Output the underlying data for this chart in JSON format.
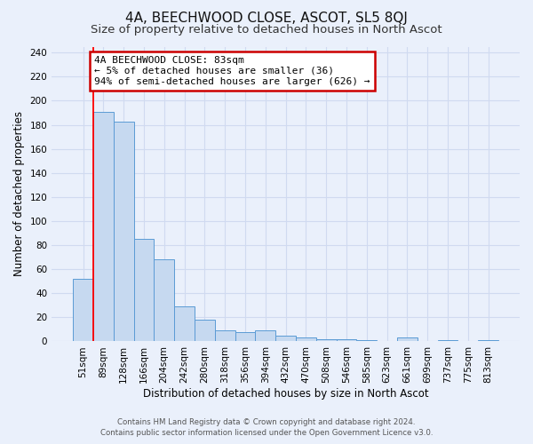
{
  "title": "4A, BEECHWOOD CLOSE, ASCOT, SL5 8QJ",
  "subtitle": "Size of property relative to detached houses in North Ascot",
  "xlabel": "Distribution of detached houses by size in North Ascot",
  "ylabel": "Number of detached properties",
  "bar_labels": [
    "51sqm",
    "89sqm",
    "128sqm",
    "166sqm",
    "204sqm",
    "242sqm",
    "280sqm",
    "318sqm",
    "356sqm",
    "394sqm",
    "432sqm",
    "470sqm",
    "508sqm",
    "546sqm",
    "585sqm",
    "623sqm",
    "661sqm",
    "699sqm",
    "737sqm",
    "775sqm",
    "813sqm"
  ],
  "bar_values": [
    52,
    191,
    183,
    85,
    68,
    29,
    18,
    9,
    8,
    9,
    5,
    3,
    2,
    2,
    1,
    0,
    3,
    0,
    1,
    0,
    1
  ],
  "bar_color": "#c6d9f0",
  "bar_edge_color": "#5b9bd5",
  "marker_label": "4A BEECHWOOD CLOSE: 83sqm",
  "annotation_line1": "← 5% of detached houses are smaller (36)",
  "annotation_line2": "94% of semi-detached houses are larger (626) →",
  "annotation_box_color": "#ffffff",
  "annotation_box_edge": "#cc0000",
  "ylim": [
    0,
    245
  ],
  "yticks": [
    0,
    20,
    40,
    60,
    80,
    100,
    120,
    140,
    160,
    180,
    200,
    220,
    240
  ],
  "footer_line1": "Contains HM Land Registry data © Crown copyright and database right 2024.",
  "footer_line2": "Contains public sector information licensed under the Open Government Licence v3.0.",
  "bg_color": "#eaf0fb",
  "grid_color": "#d0daf0",
  "title_fontsize": 11,
  "subtitle_fontsize": 9.5,
  "axis_label_fontsize": 8.5,
  "tick_fontsize": 7.5,
  "annot_fontsize": 8
}
